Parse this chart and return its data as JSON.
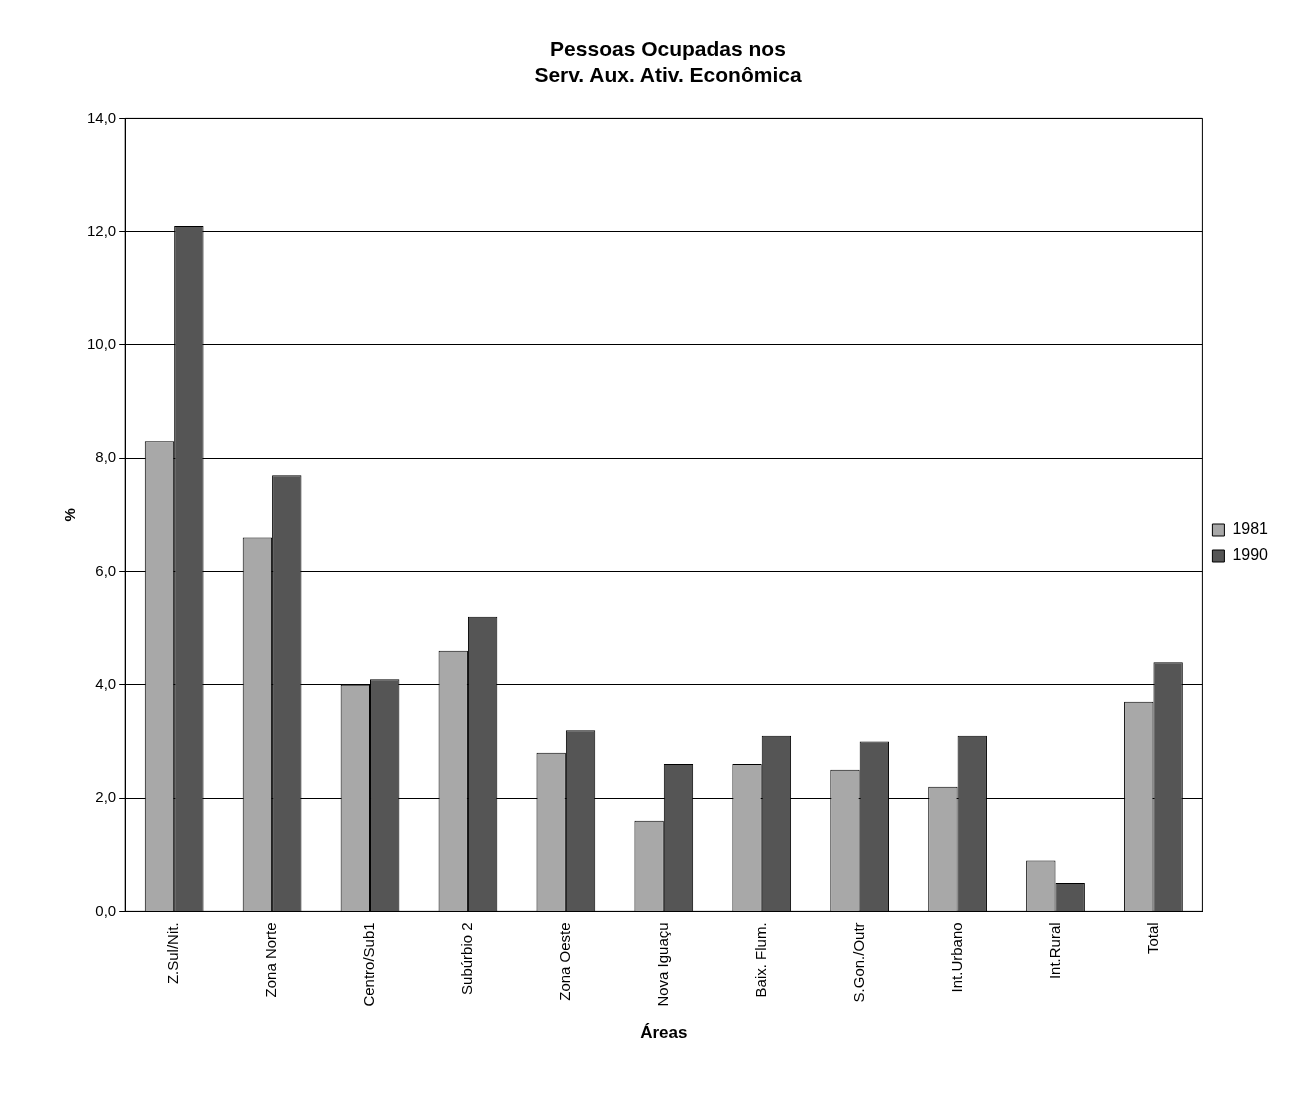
{
  "chart_data": {
    "type": "bar",
    "title": "Pessoas Ocupadas nos\nServ. Aux. Ativ. Econômica",
    "xlabel": "Áreas",
    "ylabel": "%",
    "categories": [
      "Z.Sul/Nit.",
      "Zona Norte",
      "Centro/Sub1",
      "Subúrbio 2",
      "Zona Oeste",
      "Nova Iguaçu",
      "Baix. Flum.",
      "S.Gon./Outr",
      "Int.Urbano",
      "Int.Rural",
      "Total"
    ],
    "series": [
      {
        "name": "1981",
        "color": "#a8a8a8",
        "values": [
          8.3,
          6.6,
          4.0,
          4.6,
          2.8,
          1.6,
          2.6,
          2.5,
          2.2,
          0.9,
          3.7
        ]
      },
      {
        "name": "1990",
        "color": "#555555",
        "values": [
          12.1,
          7.7,
          4.1,
          5.2,
          3.2,
          2.6,
          3.1,
          3.0,
          3.1,
          0.5,
          4.4
        ]
      }
    ],
    "ylim": [
      0,
      14
    ],
    "yticks": [
      {
        "value": 0,
        "label": "0,0"
      },
      {
        "value": 2,
        "label": "2,0"
      },
      {
        "value": 4,
        "label": "4,0"
      },
      {
        "value": 6,
        "label": "6,0"
      },
      {
        "value": 8,
        "label": "8,0"
      },
      {
        "value": 10,
        "label": "10,0"
      },
      {
        "value": 12,
        "label": "12,0"
      },
      {
        "value": 14,
        "label": "14,0"
      }
    ],
    "grid": "y",
    "legend": "right"
  }
}
